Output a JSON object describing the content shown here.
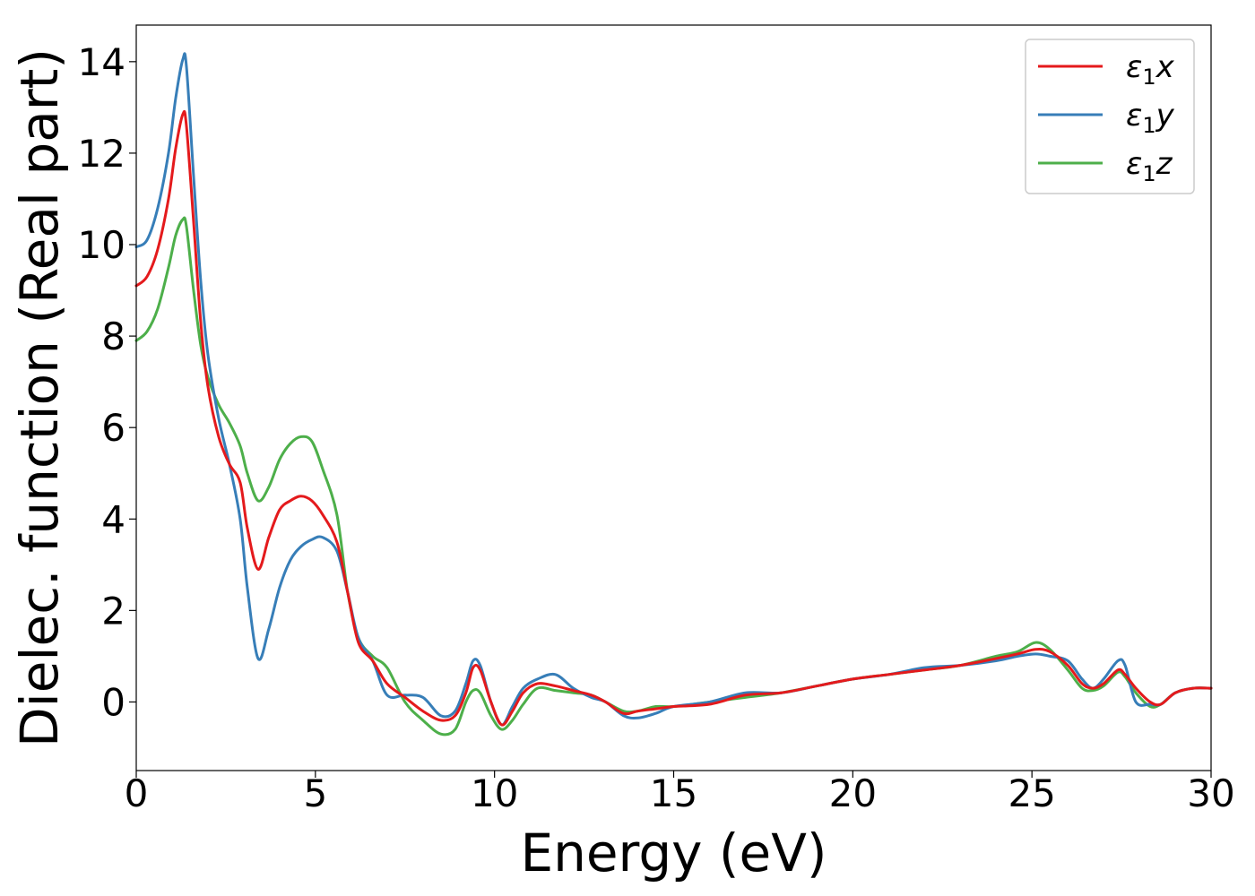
{
  "chart_data": {
    "type": "line",
    "xlabel": "Energy (eV)",
    "ylabel": "Dielec. function (Real part)",
    "xlim": [
      0,
      30
    ],
    "ylim": [
      -1.5,
      14.8
    ],
    "xticks": [
      0,
      5,
      10,
      15,
      20,
      25,
      30
    ],
    "yticks": [
      0,
      2,
      4,
      6,
      8,
      10,
      12,
      14
    ],
    "legend_position": "top-right",
    "grid": false,
    "series": [
      {
        "name": "ε1x",
        "legend_base": "ε",
        "legend_sub": "1",
        "legend_var": "x",
        "color": "#e41a1c",
        "x": [
          0,
          0.3,
          0.6,
          0.9,
          1.1,
          1.3,
          1.4,
          1.6,
          1.8,
          2.0,
          2.3,
          2.6,
          2.9,
          3.1,
          3.4,
          3.7,
          4.0,
          4.3,
          4.6,
          4.9,
          5.2,
          5.6,
          5.9,
          6.2,
          6.6,
          7.0,
          7.5,
          8.0,
          8.5,
          8.9,
          9.2,
          9.4,
          9.6,
          9.9,
          10.2,
          10.5,
          10.8,
          11.2,
          11.7,
          12.2,
          12.7,
          13.1,
          13.6,
          14.0,
          14.5,
          15.0,
          16.0,
          17.0,
          18.0,
          19.0,
          20.0,
          21.0,
          22.0,
          23.0,
          24.0,
          24.6,
          25.1,
          25.5,
          26.0,
          26.4,
          26.7,
          27.0,
          27.4,
          27.6,
          27.9,
          28.3,
          28.6,
          29.0,
          29.5,
          30.0
        ],
        "values": [
          9.1,
          9.3,
          9.9,
          11.0,
          12.1,
          12.85,
          12.6,
          10.5,
          8.3,
          6.9,
          5.8,
          5.2,
          4.8,
          3.8,
          2.9,
          3.6,
          4.2,
          4.4,
          4.5,
          4.4,
          4.1,
          3.5,
          2.4,
          1.3,
          0.9,
          0.4,
          0.1,
          -0.2,
          -0.4,
          -0.3,
          0.2,
          0.75,
          0.7,
          0.0,
          -0.5,
          -0.2,
          0.2,
          0.4,
          0.35,
          0.25,
          0.15,
          0.0,
          -0.25,
          -0.2,
          -0.15,
          -0.1,
          -0.05,
          0.15,
          0.2,
          0.35,
          0.5,
          0.6,
          0.7,
          0.8,
          0.95,
          1.05,
          1.15,
          1.1,
          0.8,
          0.4,
          0.3,
          0.4,
          0.7,
          0.6,
          0.3,
          0.0,
          -0.05,
          0.2,
          0.3,
          0.3
        ]
      },
      {
        "name": "ε1y",
        "legend_base": "ε",
        "legend_sub": "1",
        "legend_var": "y",
        "color": "#377eb8",
        "x": [
          0,
          0.3,
          0.6,
          0.9,
          1.1,
          1.3,
          1.4,
          1.6,
          1.8,
          2.0,
          2.3,
          2.6,
          2.9,
          3.1,
          3.4,
          3.7,
          4.0,
          4.3,
          4.6,
          4.9,
          5.2,
          5.6,
          5.9,
          6.2,
          6.6,
          7.0,
          7.5,
          8.0,
          8.5,
          8.9,
          9.2,
          9.4,
          9.6,
          9.9,
          10.2,
          10.5,
          10.8,
          11.2,
          11.7,
          12.2,
          12.7,
          13.1,
          13.6,
          14.0,
          14.5,
          15.0,
          16.0,
          17.0,
          18.0,
          19.0,
          20.0,
          21.0,
          22.0,
          23.0,
          24.0,
          24.6,
          25.1,
          25.5,
          26.0,
          26.4,
          26.7,
          27.0,
          27.4,
          27.6,
          27.9,
          28.3,
          28.6,
          29.0,
          29.5,
          30.0
        ],
        "values": [
          9.95,
          10.1,
          10.8,
          12.0,
          13.2,
          14.05,
          13.9,
          11.5,
          9.2,
          7.6,
          6.2,
          5.2,
          4.0,
          2.5,
          0.95,
          1.6,
          2.5,
          3.1,
          3.4,
          3.55,
          3.6,
          3.3,
          2.4,
          1.4,
          0.9,
          0.15,
          0.15,
          0.1,
          -0.3,
          -0.2,
          0.4,
          0.9,
          0.8,
          0.0,
          -0.5,
          -0.1,
          0.3,
          0.5,
          0.6,
          0.3,
          0.1,
          0.0,
          -0.3,
          -0.35,
          -0.25,
          -0.1,
          0.0,
          0.2,
          0.2,
          0.35,
          0.5,
          0.6,
          0.75,
          0.8,
          0.9,
          1.0,
          1.05,
          1.0,
          0.9,
          0.5,
          0.3,
          0.5,
          0.9,
          0.8,
          0.0,
          -0.05,
          -0.05,
          0.2,
          0.3,
          0.3
        ]
      },
      {
        "name": "ε1z",
        "legend_base": "ε",
        "legend_sub": "1",
        "legend_var": "z",
        "color": "#4daf4a",
        "x": [
          0,
          0.3,
          0.6,
          0.9,
          1.1,
          1.3,
          1.4,
          1.6,
          1.8,
          2.0,
          2.3,
          2.6,
          2.9,
          3.1,
          3.4,
          3.7,
          4.0,
          4.3,
          4.6,
          4.9,
          5.2,
          5.6,
          5.9,
          6.2,
          6.6,
          7.0,
          7.5,
          8.0,
          8.5,
          8.9,
          9.2,
          9.4,
          9.6,
          9.9,
          10.2,
          10.5,
          10.8,
          11.2,
          11.7,
          12.2,
          12.7,
          13.1,
          13.6,
          14.0,
          14.5,
          15.0,
          16.0,
          17.0,
          18.0,
          19.0,
          20.0,
          21.0,
          22.0,
          23.0,
          24.0,
          24.6,
          25.1,
          25.5,
          26.0,
          26.4,
          26.7,
          27.0,
          27.4,
          27.6,
          27.9,
          28.3,
          28.6,
          29.0,
          29.5,
          30.0
        ],
        "values": [
          7.9,
          8.1,
          8.6,
          9.5,
          10.2,
          10.55,
          10.4,
          9.0,
          7.8,
          7.1,
          6.5,
          6.1,
          5.6,
          5.0,
          4.4,
          4.7,
          5.3,
          5.65,
          5.8,
          5.7,
          5.1,
          4.1,
          2.4,
          1.4,
          1.0,
          0.75,
          0.0,
          -0.4,
          -0.7,
          -0.6,
          0.0,
          0.25,
          0.2,
          -0.3,
          -0.6,
          -0.4,
          -0.05,
          0.3,
          0.25,
          0.2,
          0.15,
          0.0,
          -0.2,
          -0.2,
          -0.1,
          -0.1,
          0.0,
          0.1,
          0.2,
          0.35,
          0.5,
          0.6,
          0.7,
          0.8,
          1.0,
          1.1,
          1.3,
          1.15,
          0.7,
          0.3,
          0.25,
          0.35,
          0.65,
          0.55,
          0.2,
          -0.1,
          -0.05,
          0.2,
          0.3,
          0.3
        ]
      }
    ]
  }
}
